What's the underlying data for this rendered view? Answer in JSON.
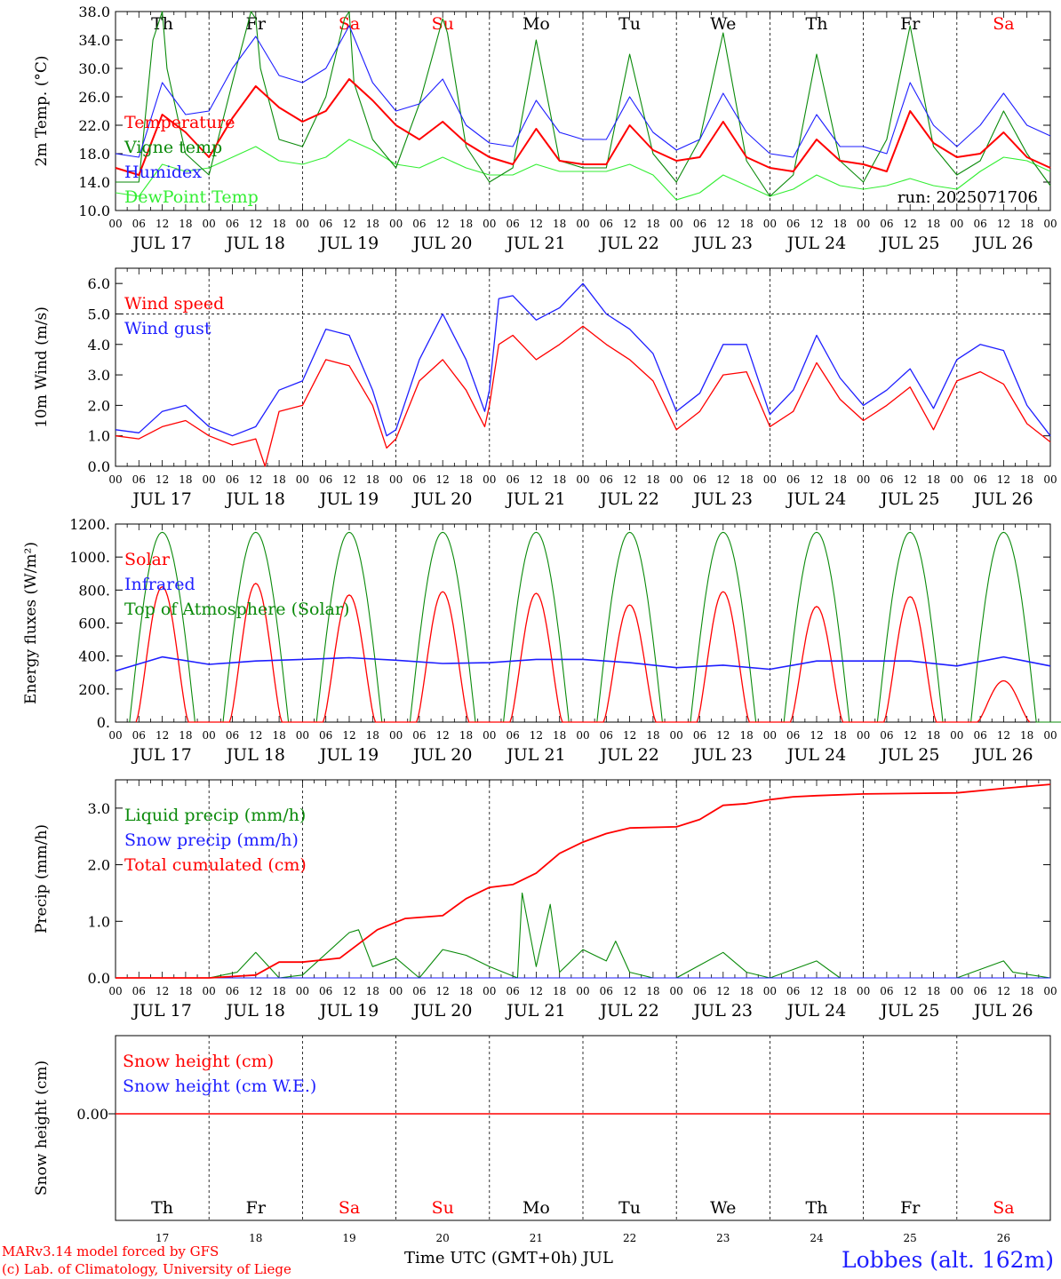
{
  "days": [
    {
      "abbr": "Th",
      "date": "17",
      "weekend": false
    },
    {
      "abbr": "Fr",
      "date": "18",
      "weekend": false
    },
    {
      "abbr": "Sa",
      "date": "19",
      "weekend": true
    },
    {
      "abbr": "Su",
      "date": "20",
      "weekend": true
    },
    {
      "abbr": "Mo",
      "date": "21",
      "weekend": false
    },
    {
      "abbr": "Tu",
      "date": "22",
      "weekend": false
    },
    {
      "abbr": "We",
      "date": "23",
      "weekend": false
    },
    {
      "abbr": "Th",
      "date": "24",
      "weekend": false
    },
    {
      "abbr": "Fr",
      "date": "25",
      "weekend": false
    },
    {
      "abbr": "Sa",
      "date": "26",
      "weekend": true
    }
  ],
  "month": "JUL",
  "date_labels": [
    "JUL 17",
    "JUL 18",
    "JUL 19",
    "JUL 20",
    "JUL 21",
    "JUL 22",
    "JUL 23",
    "JUL 24",
    "JUL 25",
    "JUL 26"
  ],
  "hour_ticks": [
    "00",
    "06",
    "12",
    "18"
  ],
  "last_hour_tick": "00",
  "colors": {
    "red": "#ff0000",
    "green": "#0a8a0a",
    "blue": "#1e1eff",
    "lime": "#33ee33",
    "black": "#000000"
  },
  "footer": {
    "model": "MARv3.14 model forced by GFS",
    "credit": "(c) Lab. of Climatology, University of Liege",
    "xaxis_title": "Time UTC (GMT+0h) JUL",
    "station": "Lobbes (alt. 162m)"
  },
  "chart_data": [
    {
      "type": "line",
      "ylabel": "2m Temp. (°C)",
      "ylim": [
        10,
        38
      ],
      "yticks": [
        "10.0",
        "14.0",
        "18.0",
        "22.0",
        "26.0",
        "30.0",
        "34.0",
        "38.0"
      ],
      "annotation": "run: 2025071706",
      "x_unit": "day (0 = JUL 17 00 UTC)",
      "series": [
        {
          "name": "Temperature",
          "color": "red",
          "x": [
            0,
            0.25,
            0.5,
            0.75,
            1,
            1.25,
            1.5,
            1.75,
            2,
            2.25,
            2.5,
            2.75,
            3,
            3.25,
            3.5,
            3.75,
            4,
            4.25,
            4.5,
            4.75,
            5,
            5.25,
            5.5,
            5.75,
            6,
            6.25,
            6.5,
            6.75,
            7,
            7.25,
            7.5,
            7.75,
            8,
            8.25,
            8.5,
            8.75,
            9,
            9.25,
            9.5,
            9.75,
            10
          ],
          "values": [
            16,
            15,
            23.5,
            21,
            17.5,
            23,
            27.5,
            24.5,
            22.5,
            24,
            28.5,
            25.5,
            22,
            20,
            22.5,
            19.5,
            17.5,
            16.5,
            21.5,
            17,
            16.5,
            16.5,
            22,
            18.5,
            17,
            17.5,
            22.5,
            17.5,
            16,
            15.5,
            20,
            17,
            16.5,
            15.5,
            24,
            19.5,
            17.5,
            18,
            21,
            17.5,
            16
          ]
        },
        {
          "name": "Vigne temp",
          "color": "green",
          "x": [
            0,
            0.25,
            0.4,
            0.5,
            0.55,
            0.75,
            1,
            1.25,
            1.45,
            1.5,
            1.55,
            1.75,
            2,
            2.25,
            2.45,
            2.5,
            2.55,
            2.75,
            3,
            3.25,
            3.5,
            3.55,
            3.75,
            4,
            4.25,
            4.5,
            4.75,
            5,
            5.25,
            5.5,
            5.75,
            6,
            6.25,
            6.5,
            6.75,
            7,
            7.25,
            7.5,
            7.75,
            8,
            8.25,
            8.5,
            8.75,
            9,
            9.25,
            9.5,
            9.75,
            10
          ],
          "values": [
            14,
            14,
            34,
            38,
            30,
            18,
            15,
            28,
            38,
            37,
            30,
            20,
            19,
            26,
            37,
            38,
            28,
            20,
            16,
            25,
            37,
            35,
            19,
            14,
            16,
            34,
            17,
            16,
            16,
            32,
            18,
            14,
            20,
            35,
            17,
            12,
            15,
            32,
            17,
            14,
            20,
            36,
            19,
            15,
            17,
            24,
            18,
            13.5
          ]
        },
        {
          "name": "Humidex",
          "color": "blue",
          "x": [
            0,
            0.25,
            0.5,
            0.75,
            1,
            1.25,
            1.5,
            1.75,
            2,
            2.25,
            2.5,
            2.75,
            3,
            3.25,
            3.5,
            3.75,
            4,
            4.25,
            4.5,
            4.75,
            5,
            5.25,
            5.5,
            5.75,
            6,
            6.25,
            6.5,
            6.75,
            7,
            7.25,
            7.5,
            7.75,
            8,
            8.25,
            8.5,
            8.75,
            9,
            9.25,
            9.5,
            9.75,
            10
          ],
          "values": [
            18,
            17.5,
            28,
            23.5,
            24,
            30,
            34.5,
            29,
            28,
            30,
            36,
            28,
            24,
            25,
            28.5,
            22,
            19.5,
            19,
            25.5,
            21,
            20,
            20,
            26,
            21,
            18.5,
            20,
            26.5,
            21,
            18,
            17.5,
            23.5,
            19,
            19,
            18,
            28,
            22,
            19,
            22,
            26.5,
            22,
            20.5
          ]
        },
        {
          "name": "DewPoint Temp",
          "color": "lime",
          "x": [
            0,
            0.25,
            0.5,
            0.75,
            1,
            1.25,
            1.5,
            1.75,
            2,
            2.25,
            2.5,
            2.75,
            3,
            3.25,
            3.5,
            3.75,
            4,
            4.25,
            4.5,
            4.75,
            5,
            5.25,
            5.5,
            5.75,
            6,
            6.25,
            6.5,
            6.75,
            7,
            7.25,
            7.5,
            7.75,
            8,
            8.25,
            8.5,
            8.75,
            9,
            9.25,
            9.5,
            9.75,
            10
          ],
          "values": [
            12.5,
            12,
            16.5,
            15.5,
            16,
            17.5,
            19,
            17,
            16.5,
            17.5,
            20,
            18.5,
            16.5,
            16,
            17.5,
            16,
            15,
            15,
            16.5,
            15.5,
            15.5,
            15.5,
            16.5,
            15,
            11.5,
            12.5,
            15,
            13.5,
            12,
            13,
            15,
            13.5,
            13,
            13.5,
            14.5,
            13.5,
            13,
            15.5,
            17.5,
            17,
            15.5
          ]
        }
      ]
    },
    {
      "type": "line",
      "ylabel": "10m Wind (m/s)",
      "ylim": [
        0,
        6.5
      ],
      "yticks": [
        "0.0",
        "1.0",
        "2.0",
        "3.0",
        "4.0",
        "5.0",
        "6.0"
      ],
      "ref_line": 5.0,
      "x_unit": "day (0 = JUL 17 00 UTC)",
      "series": [
        {
          "name": "Wind speed",
          "color": "red",
          "x": [
            0,
            0.25,
            0.5,
            0.75,
            1,
            1.25,
            1.5,
            1.6,
            1.75,
            2,
            2.25,
            2.5,
            2.75,
            2.9,
            3,
            3.25,
            3.5,
            3.75,
            3.95,
            4,
            4.1,
            4.25,
            4.5,
            4.75,
            5,
            5.25,
            5.5,
            5.75,
            6,
            6.25,
            6.5,
            6.75,
            7,
            7.25,
            7.5,
            7.75,
            8,
            8.25,
            8.5,
            8.75,
            9,
            9.25,
            9.5,
            9.75,
            10
          ],
          "values": [
            1,
            0.9,
            1.3,
            1.5,
            1,
            0.7,
            0.9,
            0,
            1.8,
            2,
            3.5,
            3.3,
            2,
            0.6,
            0.9,
            2.8,
            3.5,
            2.5,
            1.3,
            2,
            4,
            4.3,
            3.5,
            4,
            4.6,
            4,
            3.5,
            2.8,
            1.2,
            1.8,
            3,
            3.1,
            1.3,
            1.8,
            3.4,
            2.2,
            1.5,
            2,
            2.6,
            1.2,
            2.8,
            3.1,
            2.7,
            1.4,
            0.8
          ]
        },
        {
          "name": "Wind gust",
          "color": "blue",
          "x": [
            0,
            0.25,
            0.5,
            0.75,
            1,
            1.25,
            1.5,
            1.75,
            2,
            2.25,
            2.5,
            2.75,
            2.9,
            3,
            3.25,
            3.5,
            3.75,
            3.95,
            4,
            4.1,
            4.25,
            4.5,
            4.75,
            5,
            5.25,
            5.5,
            5.75,
            6,
            6.25,
            6.5,
            6.75,
            7,
            7.25,
            7.5,
            7.75,
            8,
            8.25,
            8.5,
            8.75,
            9,
            9.25,
            9.5,
            9.75,
            10
          ],
          "values": [
            1.2,
            1.1,
            1.8,
            2,
            1.3,
            1,
            1.3,
            2.5,
            2.8,
            4.5,
            4.3,
            2.5,
            1,
            1.2,
            3.5,
            5,
            3.5,
            1.8,
            2.5,
            5.5,
            5.6,
            4.8,
            5.2,
            6,
            5,
            4.5,
            3.7,
            1.8,
            2.4,
            4,
            4,
            1.7,
            2.5,
            4.3,
            2.9,
            2,
            2.5,
            3.2,
            1.9,
            3.5,
            4,
            3.8,
            2,
            1
          ]
        }
      ]
    },
    {
      "type": "line",
      "ylabel": "Energy fluxes (W/m²)",
      "ylim": [
        0,
        1200
      ],
      "yticks": [
        "0.",
        "200.",
        "400.",
        "600.",
        "800.",
        "1000.",
        "1200."
      ],
      "x_unit": "day (0 = JUL 17 00 UTC)",
      "series": [
        {
          "name": "Solar",
          "color": "red",
          "peaks": [
            820,
            840,
            770,
            790,
            780,
            710,
            790,
            700,
            760,
            250
          ]
        },
        {
          "name": "Infrared",
          "color": "blue",
          "x": [
            0,
            0.5,
            1,
            1.5,
            2,
            2.5,
            3,
            3.5,
            4,
            4.5,
            5,
            5.5,
            6,
            6.5,
            7,
            7.5,
            8,
            8.5,
            9,
            9.5,
            10
          ],
          "values": [
            310,
            395,
            350,
            370,
            380,
            390,
            375,
            355,
            360,
            380,
            380,
            360,
            330,
            345,
            320,
            370,
            370,
            370,
            340,
            395,
            340
          ]
        },
        {
          "name": "Top of Atmosphere (Solar)",
          "color": "green",
          "peak": 1150
        }
      ]
    },
    {
      "type": "line",
      "ylabel": "Precip (mm/h)",
      "ylim": [
        0,
        3.5
      ],
      "yticks": [
        "0.0",
        "1.0",
        "2.0",
        "3.0"
      ],
      "x_unit": "day (0 = JUL 17 00 UTC)",
      "series": [
        {
          "name": "Liquid precip (mm/h)",
          "color": "green",
          "x": [
            0,
            1,
            1.3,
            1.5,
            1.75,
            2,
            2.5,
            2.6,
            2.75,
            3,
            3.25,
            3.5,
            3.75,
            4,
            4.3,
            4.35,
            4.5,
            4.65,
            4.75,
            5,
            5.25,
            5.35,
            5.5,
            5.75,
            6,
            6.5,
            6.75,
            7,
            7.5,
            7.75,
            8,
            8.5,
            9,
            9.5,
            9.6,
            10
          ],
          "values": [
            0,
            0,
            0.1,
            0.45,
            0,
            0.05,
            0.8,
            0.85,
            0.2,
            0.35,
            0,
            0.5,
            0.4,
            0.2,
            0,
            1.5,
            0.2,
            1.3,
            0.1,
            0.5,
            0.3,
            0.65,
            0.1,
            0,
            0,
            0.45,
            0.1,
            0,
            0.3,
            0,
            0,
            0,
            0,
            0.3,
            0.1,
            0
          ]
        },
        {
          "name": "Snow precip (mm/h)",
          "color": "blue",
          "x": [
            0,
            10
          ],
          "values": [
            0,
            0
          ]
        },
        {
          "name": "Total cumulated (cm)",
          "color": "red",
          "x": [
            0,
            1,
            1.5,
            1.75,
            2,
            2.4,
            2.8,
            3.1,
            3.5,
            3.75,
            4,
            4.25,
            4.5,
            4.75,
            5,
            5.25,
            5.5,
            6,
            6.25,
            6.5,
            6.75,
            7,
            7.25,
            7.5,
            8,
            9,
            9.5,
            10
          ],
          "values": [
            0,
            0,
            0.05,
            0.28,
            0.28,
            0.35,
            0.85,
            1.05,
            1.1,
            1.4,
            1.6,
            1.65,
            1.85,
            2.2,
            2.4,
            2.55,
            2.65,
            2.67,
            2.8,
            3.05,
            3.08,
            3.15,
            3.2,
            3.22,
            3.25,
            3.27,
            3.35,
            3.42
          ]
        }
      ]
    },
    {
      "type": "line",
      "ylabel": "Snow height (cm)",
      "yticks": [
        "0.00"
      ],
      "x_unit": "day (0 = JUL 17 00 UTC)",
      "series": [
        {
          "name": "Snow height (cm)",
          "color": "red",
          "x": [
            0,
            10
          ],
          "values": [
            0,
            0
          ]
        },
        {
          "name": "Snow height (cm W.E.)",
          "color": "blue",
          "x": [
            0,
            10
          ],
          "values": [
            0,
            0
          ]
        }
      ]
    }
  ]
}
